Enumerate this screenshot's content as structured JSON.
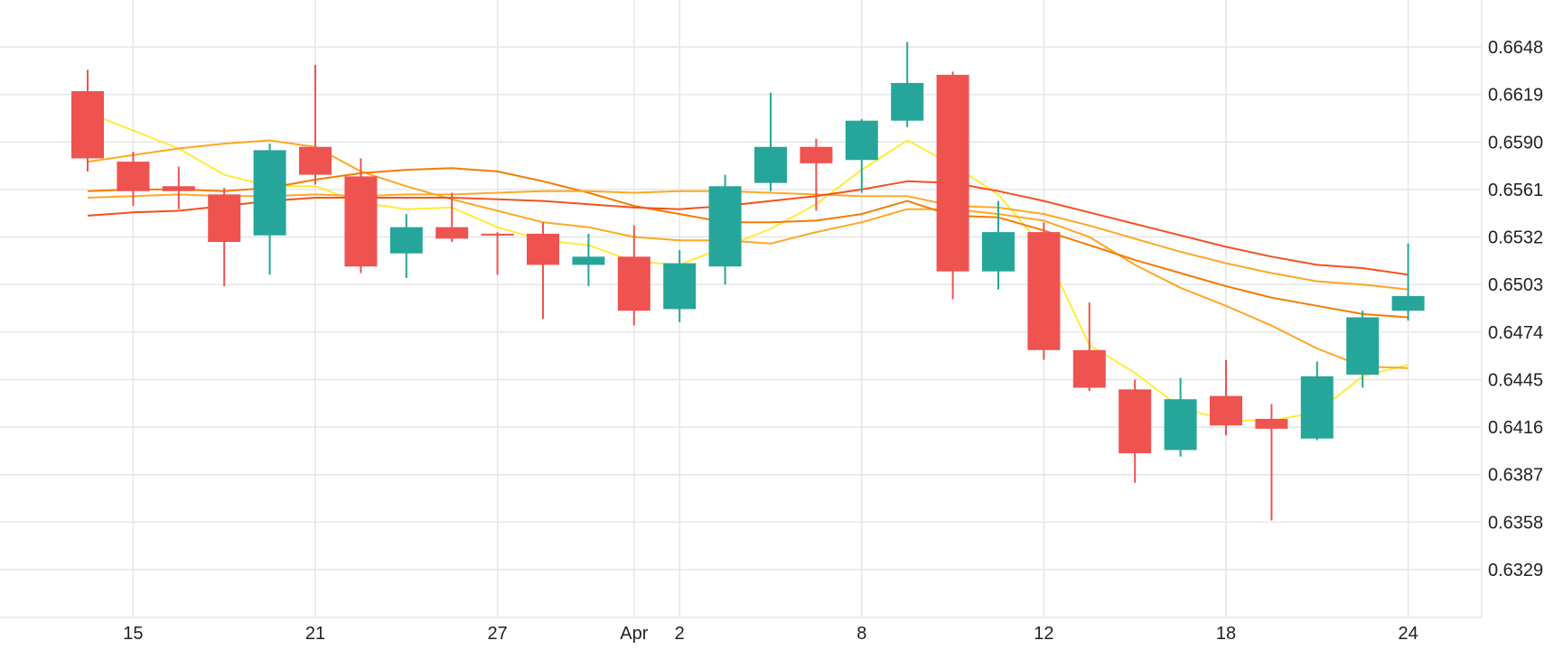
{
  "colors": {
    "up": "#26a69a",
    "down": "#ef5350",
    "grid": "#e6e6e6",
    "ma_fast": "#ffeb3b",
    "ma_mid": "#ffa726",
    "ma_slow": "#f57c00",
    "ma_slowest": "#f4511e"
  },
  "chart_data": {
    "type": "candlestick",
    "grid": true,
    "y_axis": {
      "position": "right",
      "ylim": [
        0.63,
        0.6677
      ]
    },
    "y_ticks": [
      "0.6648",
      "0.6619",
      "0.6590",
      "0.6561",
      "0.6532",
      "0.6503",
      "0.6474",
      "0.6445",
      "0.6416",
      "0.6387",
      "0.6358",
      "0.6329"
    ],
    "x_ticks": [
      {
        "label": "15",
        "x": 2
      },
      {
        "label": "21",
        "x": 6
      },
      {
        "label": "27",
        "x": 10
      },
      {
        "label": "Apr",
        "x": 13
      },
      {
        "label": "2",
        "x": 14
      },
      {
        "label": "8",
        "x": 18
      },
      {
        "label": "12",
        "x": 22
      },
      {
        "label": "18",
        "x": 26
      },
      {
        "label": "24",
        "x": 30
      }
    ],
    "candles": [
      {
        "x": 1,
        "open": 0.6621,
        "high": 0.6634,
        "low": 0.6572,
        "close": 0.658
      },
      {
        "x": 2,
        "open": 0.6578,
        "high": 0.6584,
        "low": 0.6551,
        "close": 0.656
      },
      {
        "x": 3,
        "open": 0.6563,
        "high": 0.6575,
        "low": 0.6549,
        "close": 0.656
      },
      {
        "x": 4,
        "open": 0.6558,
        "high": 0.6562,
        "low": 0.6502,
        "close": 0.6529
      },
      {
        "x": 5,
        "open": 0.6533,
        "high": 0.6589,
        "low": 0.6509,
        "close": 0.6585
      },
      {
        "x": 6,
        "open": 0.6587,
        "high": 0.6637,
        "low": 0.6564,
        "close": 0.657
      },
      {
        "x": 7,
        "open": 0.6569,
        "high": 0.658,
        "low": 0.651,
        "close": 0.6514
      },
      {
        "x": 8,
        "open": 0.6522,
        "high": 0.6546,
        "low": 0.6507,
        "close": 0.6538
      },
      {
        "x": 9,
        "open": 0.6538,
        "high": 0.6559,
        "low": 0.6529,
        "close": 0.6531
      },
      {
        "x": 10,
        "open": 0.6534,
        "high": 0.6535,
        "low": 0.6509,
        "close": 0.6533
      },
      {
        "x": 11,
        "open": 0.6534,
        "high": 0.6541,
        "low": 0.6482,
        "close": 0.6515
      },
      {
        "x": 12,
        "open": 0.6515,
        "high": 0.6534,
        "low": 0.6502,
        "close": 0.652
      },
      {
        "x": 13,
        "open": 0.652,
        "high": 0.6539,
        "low": 0.6478,
        "close": 0.6487
      },
      {
        "x": 14,
        "open": 0.6488,
        "high": 0.6524,
        "low": 0.648,
        "close": 0.6516
      },
      {
        "x": 15,
        "open": 0.6514,
        "high": 0.657,
        "low": 0.6503,
        "close": 0.6563
      },
      {
        "x": 16,
        "open": 0.6565,
        "high": 0.662,
        "low": 0.656,
        "close": 0.6587
      },
      {
        "x": 17,
        "open": 0.6587,
        "high": 0.6592,
        "low": 0.6548,
        "close": 0.6577
      },
      {
        "x": 18,
        "open": 0.6579,
        "high": 0.6604,
        "low": 0.6559,
        "close": 0.6603
      },
      {
        "x": 19,
        "open": 0.6603,
        "high": 0.6651,
        "low": 0.6599,
        "close": 0.6626
      },
      {
        "x": 20,
        "open": 0.6631,
        "high": 0.6633,
        "low": 0.6494,
        "close": 0.6511
      },
      {
        "x": 21,
        "open": 0.6511,
        "high": 0.6554,
        "low": 0.65,
        "close": 0.6535
      },
      {
        "x": 22,
        "open": 0.6535,
        "high": 0.6541,
        "low": 0.6457,
        "close": 0.6463
      },
      {
        "x": 23,
        "open": 0.6463,
        "high": 0.6492,
        "low": 0.6438,
        "close": 0.644
      },
      {
        "x": 24,
        "open": 0.6439,
        "high": 0.6445,
        "low": 0.6382,
        "close": 0.64
      },
      {
        "x": 25,
        "open": 0.6402,
        "high": 0.6446,
        "low": 0.6398,
        "close": 0.6433
      },
      {
        "x": 26,
        "open": 0.6435,
        "high": 0.6457,
        "low": 0.6411,
        "close": 0.6417
      },
      {
        "x": 27,
        "open": 0.6421,
        "high": 0.643,
        "low": 0.6359,
        "close": 0.6415
      },
      {
        "x": 28,
        "open": 0.6409,
        "high": 0.6456,
        "low": 0.6408,
        "close": 0.6447
      },
      {
        "x": 29,
        "open": 0.6448,
        "high": 0.6487,
        "low": 0.644,
        "close": 0.6483
      },
      {
        "x": 30,
        "open": 0.6487,
        "high": 0.6528,
        "low": 0.6481,
        "close": 0.6496
      }
    ],
    "lines": [
      {
        "color_key": "ma_fast",
        "points": [
          [
            1,
            0.6608
          ],
          [
            2,
            0.6597
          ],
          [
            3,
            0.6586
          ],
          [
            4,
            0.657
          ],
          [
            5,
            0.6563
          ],
          [
            6,
            0.6563
          ],
          [
            7,
            0.6553
          ],
          [
            8,
            0.6549
          ],
          [
            9,
            0.655
          ],
          [
            10,
            0.6538
          ],
          [
            11,
            0.653
          ],
          [
            12,
            0.6527
          ],
          [
            13,
            0.6517
          ],
          [
            14,
            0.6515
          ],
          [
            15,
            0.6526
          ],
          [
            16,
            0.6537
          ],
          [
            17,
            0.6552
          ],
          [
            18,
            0.6573
          ],
          [
            19,
            0.6591
          ],
          [
            20,
            0.6576
          ],
          [
            21,
            0.6558
          ],
          [
            22,
            0.6525
          ],
          [
            23,
            0.6466
          ],
          [
            24,
            0.6449
          ],
          [
            25,
            0.6428
          ],
          [
            26,
            0.642
          ],
          [
            27,
            0.642
          ],
          [
            28,
            0.6425
          ],
          [
            29,
            0.6447
          ],
          [
            30,
            0.6454
          ]
        ]
      },
      {
        "color_key": "ma_mid",
        "points": [
          [
            1,
            0.6578
          ],
          [
            2,
            0.6582
          ],
          [
            3,
            0.6586
          ],
          [
            4,
            0.6589
          ],
          [
            5,
            0.6591
          ],
          [
            6,
            0.6587
          ],
          [
            7,
            0.6572
          ],
          [
            8,
            0.6563
          ],
          [
            9,
            0.6555
          ],
          [
            10,
            0.6548
          ],
          [
            11,
            0.6541
          ],
          [
            12,
            0.6538
          ],
          [
            13,
            0.6532
          ],
          [
            14,
            0.653
          ],
          [
            15,
            0.653
          ],
          [
            16,
            0.6528
          ],
          [
            17,
            0.6535
          ],
          [
            18,
            0.6541
          ],
          [
            19,
            0.6549
          ],
          [
            20,
            0.6549
          ],
          [
            21,
            0.6546
          ],
          [
            22,
            0.6542
          ],
          [
            23,
            0.6532
          ],
          [
            24,
            0.6515
          ],
          [
            25,
            0.6501
          ],
          [
            26,
            0.649
          ],
          [
            27,
            0.6478
          ],
          [
            28,
            0.6464
          ],
          [
            29,
            0.6453
          ],
          [
            30,
            0.6452
          ]
        ]
      },
      {
        "color_key": "ma_slow",
        "points": [
          [
            1,
            0.656
          ],
          [
            2,
            0.6561
          ],
          [
            3,
            0.6561
          ],
          [
            4,
            0.656
          ],
          [
            5,
            0.6562
          ],
          [
            6,
            0.6567
          ],
          [
            7,
            0.6571
          ],
          [
            8,
            0.6573
          ],
          [
            9,
            0.6574
          ],
          [
            10,
            0.6572
          ],
          [
            11,
            0.6566
          ],
          [
            12,
            0.6559
          ],
          [
            13,
            0.6551
          ],
          [
            14,
            0.6546
          ],
          [
            15,
            0.6541
          ],
          [
            16,
            0.6541
          ],
          [
            17,
            0.6542
          ],
          [
            18,
            0.6546
          ],
          [
            19,
            0.6554
          ],
          [
            20,
            0.6545
          ],
          [
            21,
            0.6544
          ],
          [
            22,
            0.6536
          ],
          [
            23,
            0.6527
          ],
          [
            24,
            0.6518
          ],
          [
            25,
            0.651
          ],
          [
            26,
            0.6502
          ],
          [
            27,
            0.6495
          ],
          [
            28,
            0.649
          ],
          [
            29,
            0.6485
          ],
          [
            30,
            0.6483
          ]
        ]
      },
      {
        "color_key": "ma_mid",
        "points": [
          [
            1,
            0.6556
          ],
          [
            2,
            0.6557
          ],
          [
            3,
            0.6558
          ],
          [
            4,
            0.6557
          ],
          [
            5,
            0.6557
          ],
          [
            6,
            0.6558
          ],
          [
            7,
            0.6557
          ],
          [
            8,
            0.6558
          ],
          [
            9,
            0.6558
          ],
          [
            10,
            0.6559
          ],
          [
            11,
            0.656
          ],
          [
            12,
            0.656
          ],
          [
            13,
            0.6559
          ],
          [
            14,
            0.656
          ],
          [
            15,
            0.656
          ],
          [
            16,
            0.6559
          ],
          [
            17,
            0.6558
          ],
          [
            18,
            0.6557
          ],
          [
            19,
            0.6557
          ],
          [
            20,
            0.6551
          ],
          [
            21,
            0.655
          ],
          [
            22,
            0.6546
          ],
          [
            23,
            0.6539
          ],
          [
            24,
            0.6531
          ],
          [
            25,
            0.6523
          ],
          [
            26,
            0.6516
          ],
          [
            27,
            0.651
          ],
          [
            28,
            0.6505
          ],
          [
            29,
            0.6503
          ],
          [
            30,
            0.65
          ]
        ]
      },
      {
        "color_key": "ma_slowest",
        "points": [
          [
            1,
            0.6545
          ],
          [
            2,
            0.6547
          ],
          [
            3,
            0.6548
          ],
          [
            4,
            0.6551
          ],
          [
            5,
            0.6554
          ],
          [
            6,
            0.6556
          ],
          [
            7,
            0.6556
          ],
          [
            8,
            0.6556
          ],
          [
            9,
            0.6556
          ],
          [
            10,
            0.6555
          ],
          [
            11,
            0.6554
          ],
          [
            12,
            0.6552
          ],
          [
            13,
            0.655
          ],
          [
            14,
            0.6549
          ],
          [
            15,
            0.6551
          ],
          [
            16,
            0.6554
          ],
          [
            17,
            0.6557
          ],
          [
            18,
            0.6561
          ],
          [
            19,
            0.6566
          ],
          [
            20,
            0.6565
          ],
          [
            21,
            0.656
          ],
          [
            22,
            0.6554
          ],
          [
            23,
            0.6547
          ],
          [
            24,
            0.654
          ],
          [
            25,
            0.6533
          ],
          [
            26,
            0.6526
          ],
          [
            27,
            0.652
          ],
          [
            28,
            0.6515
          ],
          [
            29,
            0.6513
          ],
          [
            30,
            0.6509
          ]
        ]
      }
    ]
  }
}
